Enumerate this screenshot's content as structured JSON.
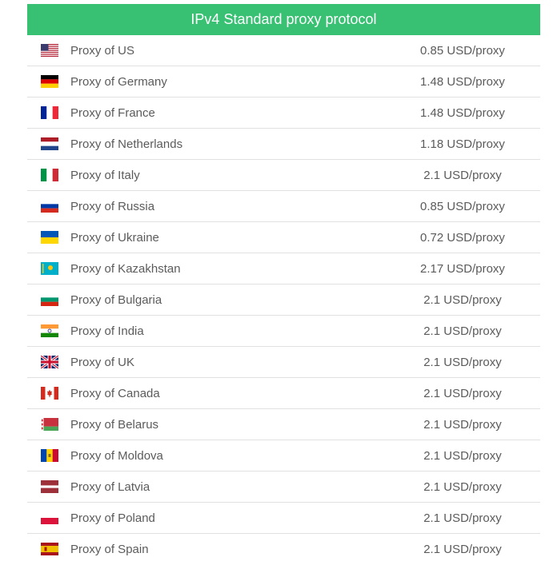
{
  "header": {
    "title": "IPv4 Standard proxy protocol"
  },
  "rows": [
    {
      "country": "Proxy of US",
      "price": "0.85 USD/proxy",
      "flag_icon": "us-flag-icon"
    },
    {
      "country": "Proxy of Germany",
      "price": "1.48 USD/proxy",
      "flag_icon": "germany-flag-icon"
    },
    {
      "country": "Proxy of France",
      "price": "1.48 USD/proxy",
      "flag_icon": "france-flag-icon"
    },
    {
      "country": "Proxy of Netherlands",
      "price": "1.18 USD/proxy",
      "flag_icon": "netherlands-flag-icon"
    },
    {
      "country": "Proxy of Italy",
      "price": "2.1 USD/proxy",
      "flag_icon": "italy-flag-icon"
    },
    {
      "country": "Proxy of Russia",
      "price": "0.85 USD/proxy",
      "flag_icon": "russia-flag-icon"
    },
    {
      "country": "Proxy of Ukraine",
      "price": "0.72 USD/proxy",
      "flag_icon": "ukraine-flag-icon"
    },
    {
      "country": "Proxy of Kazakhstan",
      "price": "2.17 USD/proxy",
      "flag_icon": "kazakhstan-flag-icon"
    },
    {
      "country": "Proxy of Bulgaria",
      "price": "2.1 USD/proxy",
      "flag_icon": "bulgaria-flag-icon"
    },
    {
      "country": "Proxy of India",
      "price": "2.1 USD/proxy",
      "flag_icon": "india-flag-icon"
    },
    {
      "country": "Proxy of UK",
      "price": "2.1 USD/proxy",
      "flag_icon": "uk-flag-icon"
    },
    {
      "country": "Proxy of Canada",
      "price": "2.1 USD/proxy",
      "flag_icon": "canada-flag-icon"
    },
    {
      "country": "Proxy of Belarus",
      "price": "2.1 USD/proxy",
      "flag_icon": "belarus-flag-icon"
    },
    {
      "country": "Proxy of Moldova",
      "price": "2.1 USD/proxy",
      "flag_icon": "moldova-flag-icon"
    },
    {
      "country": "Proxy of Latvia",
      "price": "2.1 USD/proxy",
      "flag_icon": "latvia-flag-icon"
    },
    {
      "country": "Proxy of Poland",
      "price": "2.1 USD/proxy",
      "flag_icon": "poland-flag-icon"
    },
    {
      "country": "Proxy of Spain",
      "price": "2.1 USD/proxy",
      "flag_icon": "spain-flag-icon"
    }
  ],
  "colors": {
    "header_bg": "#38c172",
    "divider": "#e1e1e1",
    "text": "#5b5b5b"
  }
}
